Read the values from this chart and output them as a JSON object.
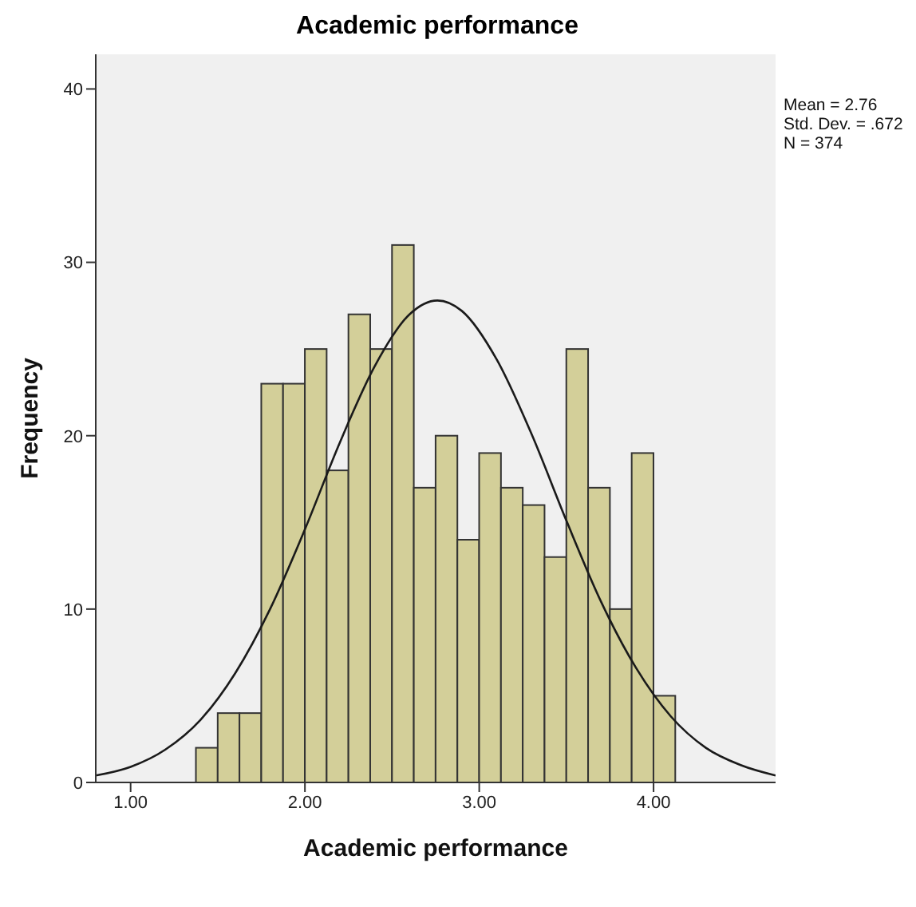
{
  "chart_data": {
    "type": "histogram",
    "title": "Academic performance",
    "xlabel": "Academic performance",
    "ylabel": "Frequency",
    "bins": [
      1.375,
      1.5,
      1.625,
      1.75,
      1.875,
      2.0,
      2.125,
      2.25,
      2.375,
      2.5,
      2.625,
      2.75,
      2.875,
      3.0,
      3.125,
      3.25,
      3.375,
      3.5,
      3.625,
      3.75,
      3.875,
      4.0,
      4.125
    ],
    "values": [
      2,
      4,
      4,
      23,
      23,
      25,
      18,
      27,
      25,
      31,
      17,
      20,
      14,
      19,
      17,
      16,
      13,
      25,
      17,
      10,
      19,
      5
    ],
    "color": "#d3cf99",
    "series": [
      {
        "type": "line",
        "color": "#1a1a1a",
        "x": [
          0.8,
          1.0,
          1.2,
          1.4,
          1.6,
          1.8,
          2.0,
          2.2,
          2.4,
          2.6,
          2.76,
          2.9,
          3.1,
          3.3,
          3.5,
          3.7,
          3.9,
          4.1,
          4.3,
          4.5,
          4.7
        ],
        "values": [
          0.4,
          0.9,
          1.9,
          3.6,
          6.3,
          10.0,
          14.6,
          19.6,
          24.0,
          27.0,
          27.8,
          27.2,
          24.4,
          20.1,
          15.1,
          10.4,
          6.6,
          3.8,
          2.0,
          1.0,
          0.4
        ]
      }
    ],
    "xlim": [
      0.8,
      4.7
    ],
    "ylim": [
      0,
      42
    ],
    "xticks": [
      {
        "value": 1,
        "label": "1.00"
      },
      {
        "value": 2,
        "label": "2.00"
      },
      {
        "value": 3,
        "label": "3.00"
      },
      {
        "value": 4,
        "label": "4.00"
      }
    ],
    "yticks": [
      0,
      10,
      20,
      30,
      40
    ],
    "grid": false,
    "annotations": [
      "Mean = 2.76",
      "Std. Dev. = .672",
      "N = 374"
    ]
  }
}
